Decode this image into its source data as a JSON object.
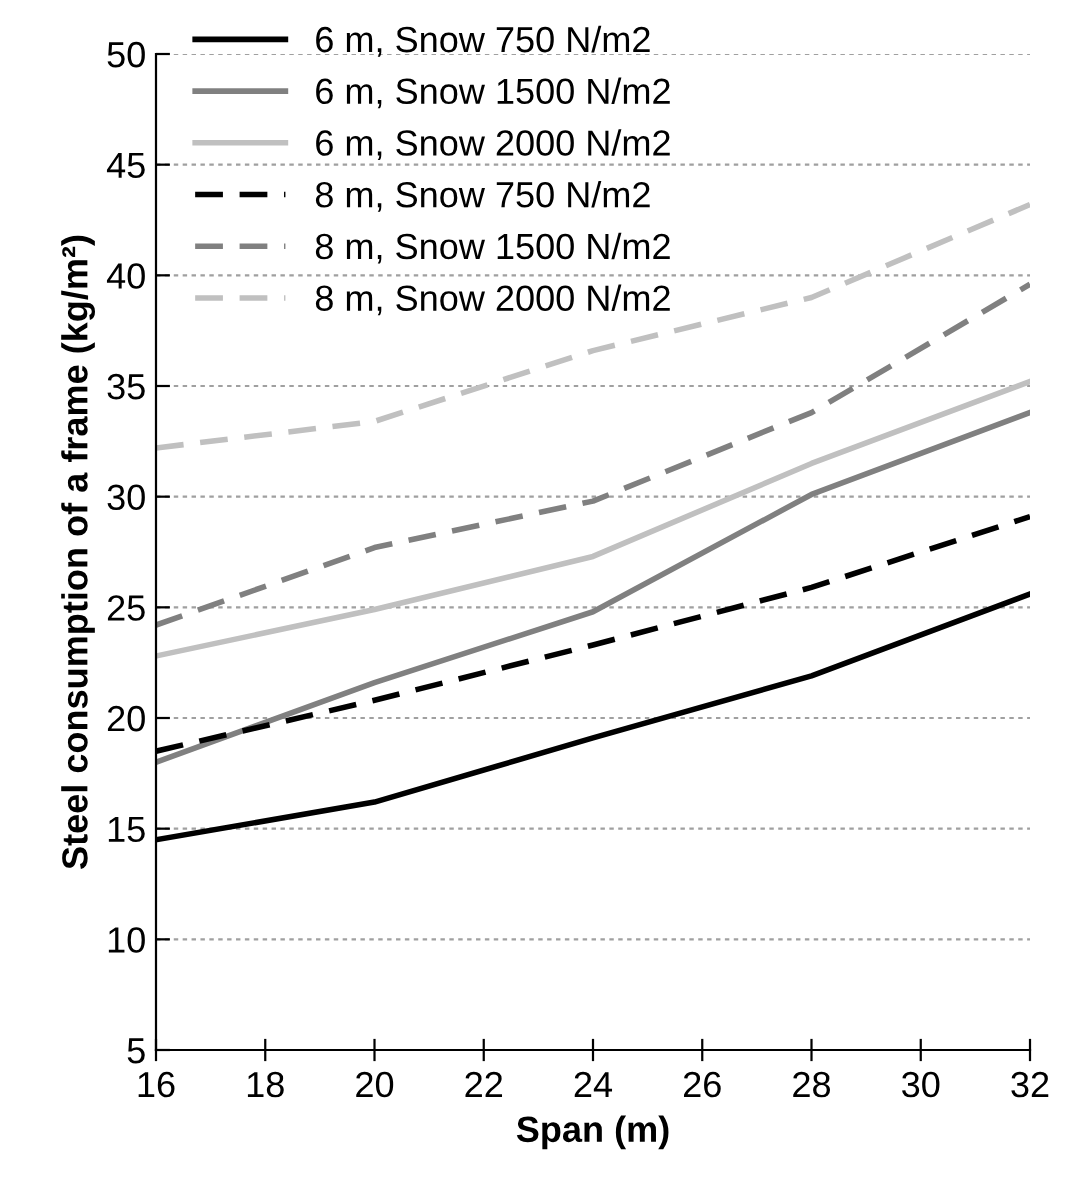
{
  "chart_data": {
    "type": "line",
    "xlabel": "Span (m)",
    "ylabel": "Steel consumption of a frame (kg/m²)",
    "x": [
      16,
      20,
      24,
      28,
      32
    ],
    "xlim": [
      16,
      32
    ],
    "xticks": [
      16,
      18,
      20,
      22,
      24,
      26,
      28,
      30,
      32
    ],
    "ylim": [
      5,
      50
    ],
    "yticks": [
      5,
      10,
      15,
      20,
      25,
      30,
      35,
      40,
      45,
      50
    ],
    "grid": "y",
    "legend": "top left",
    "marker": "none",
    "series": [
      {
        "name": "6 m, Snow 750 N/m2",
        "color": "#000000",
        "line_style": "solid",
        "values": [
          14.5,
          16.2,
          19.1,
          21.9,
          25.6
        ]
      },
      {
        "name": "6 m, Snow 1500 N/m2",
        "color": "#808080",
        "line_style": "solid",
        "values": [
          18.0,
          21.6,
          24.8,
          30.1,
          33.8
        ]
      },
      {
        "name": "6 m, Snow 2000 N/m2",
        "color": "#c0c0c0",
        "line_style": "solid",
        "values": [
          22.8,
          24.9,
          27.3,
          31.5,
          35.2
        ]
      },
      {
        "name": "8 m, Snow 750 N/m2",
        "color": "#000000",
        "line_style": "dashed",
        "values": [
          18.5,
          20.8,
          23.3,
          25.9,
          29.1
        ]
      },
      {
        "name": "8 m, Snow 1500 N/m2",
        "color": "#808080",
        "line_style": "dashed",
        "values": [
          24.2,
          27.7,
          29.8,
          33.8,
          39.6
        ]
      },
      {
        "name": "8 m, Snow 2000 N/m2",
        "color": "#c0c0c0",
        "line_style": "dashed",
        "values": [
          32.2,
          33.4,
          36.6,
          39.0,
          43.2
        ]
      }
    ]
  }
}
